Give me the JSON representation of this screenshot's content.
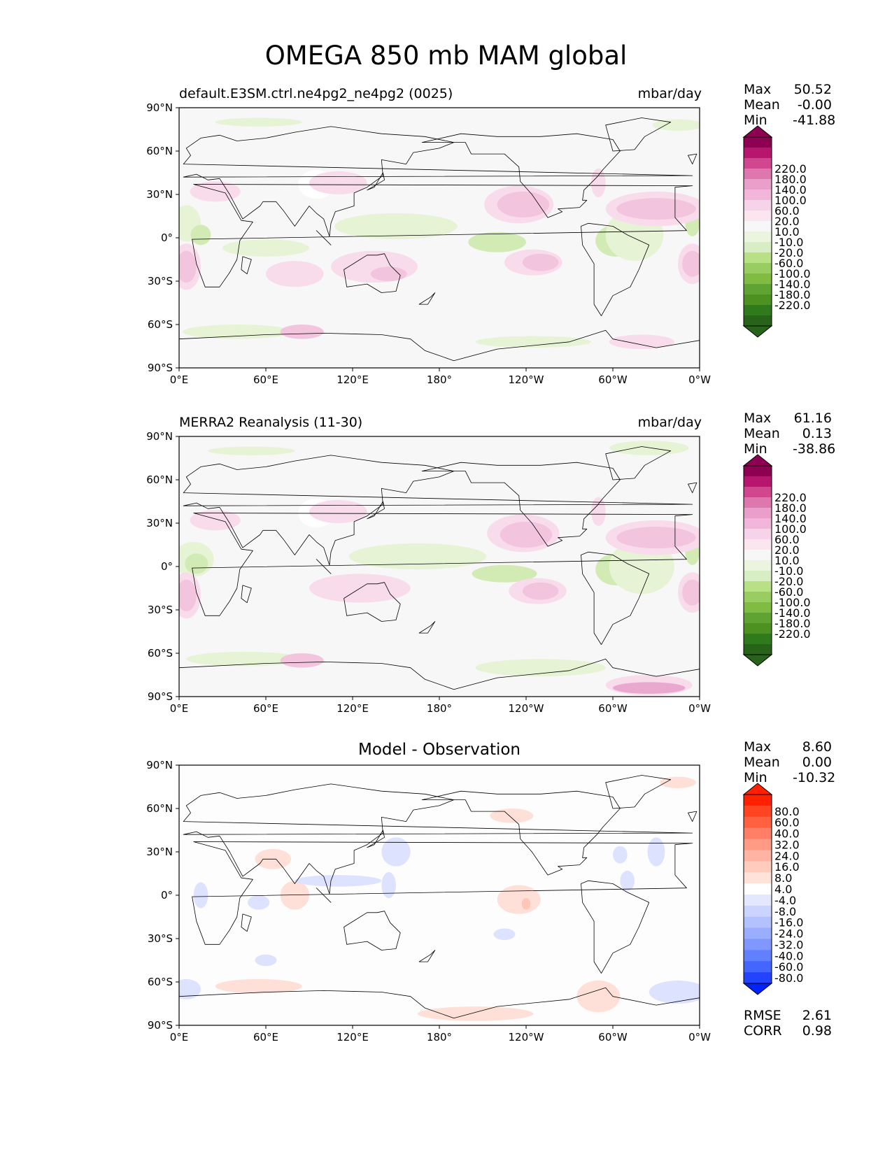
{
  "suptitle": "OMEGA 850 mb MAM global",
  "panels": [
    {
      "id": "test",
      "left_title": "default.E3SM.ctrl.ne4pg2_ne4pg2 (0025)",
      "right_title": "mbar/day",
      "center_title": "",
      "stats": [
        {
          "label": "Max",
          "value": "50.52"
        },
        {
          "label": "Mean",
          "value": "-0.00"
        },
        {
          "label": "Min",
          "value": "-41.88"
        }
      ],
      "colorbar": "omega",
      "blobs": [
        {
          "lon": 95,
          "lat": 37,
          "w": 25,
          "h": 20,
          "level": "missing"
        },
        {
          "lon": 5,
          "lat": 10,
          "w": 20,
          "h": 25,
          "level": "g1"
        },
        {
          "lon": 15,
          "lat": 2,
          "w": 14,
          "h": 14,
          "level": "g2"
        },
        {
          "lon": 150,
          "lat": 8,
          "w": 85,
          "h": 18,
          "level": "g1"
        },
        {
          "lon": 220,
          "lat": -3,
          "w": 40,
          "h": 14,
          "level": "g2"
        },
        {
          "lon": 302,
          "lat": -2,
          "w": 28,
          "h": 22,
          "level": "g2"
        },
        {
          "lon": 315,
          "lat": 2,
          "w": 40,
          "h": 36,
          "level": "g1"
        },
        {
          "lon": 60,
          "lat": -7,
          "w": 60,
          "h": 12,
          "level": "g1"
        },
        {
          "lon": 40,
          "lat": -65,
          "w": 75,
          "h": 10,
          "level": "g1"
        },
        {
          "lon": 245,
          "lat": -72,
          "w": 80,
          "h": 8,
          "level": "g1"
        },
        {
          "lon": 55,
          "lat": 80,
          "w": 60,
          "h": 6,
          "level": "g1"
        },
        {
          "lon": 345,
          "lat": 78,
          "w": 35,
          "h": 8,
          "level": "g1"
        },
        {
          "lon": 355,
          "lat": 10,
          "w": 10,
          "h": 18,
          "level": "g2"
        },
        {
          "lon": 235,
          "lat": 23,
          "w": 48,
          "h": 26,
          "level": "p1"
        },
        {
          "lon": 238,
          "lat": 23,
          "w": 36,
          "h": 18,
          "level": "p2"
        },
        {
          "lon": 330,
          "lat": 20,
          "w": 70,
          "h": 24,
          "level": "p1"
        },
        {
          "lon": 330,
          "lat": 20,
          "w": 55,
          "h": 15,
          "level": "p2"
        },
        {
          "lon": 245,
          "lat": -17,
          "w": 40,
          "h": 18,
          "level": "p1"
        },
        {
          "lon": 250,
          "lat": -17,
          "w": 25,
          "h": 12,
          "level": "p2"
        },
        {
          "lon": 5,
          "lat": -20,
          "w": 20,
          "h": 32,
          "level": "p1"
        },
        {
          "lon": 5,
          "lat": -20,
          "w": 14,
          "h": 22,
          "level": "p2"
        },
        {
          "lon": 355,
          "lat": -18,
          "w": 20,
          "h": 28,
          "level": "p1"
        },
        {
          "lon": 355,
          "lat": -18,
          "w": 14,
          "h": 18,
          "level": "p2"
        },
        {
          "lon": 135,
          "lat": -20,
          "w": 60,
          "h": 22,
          "level": "p1"
        },
        {
          "lon": 145,
          "lat": -25,
          "w": 25,
          "h": 10,
          "level": "p2"
        },
        {
          "lon": 80,
          "lat": -25,
          "w": 40,
          "h": 18,
          "level": "p1"
        },
        {
          "lon": 25,
          "lat": 32,
          "w": 35,
          "h": 14,
          "level": "p1"
        },
        {
          "lon": 110,
          "lat": 38,
          "w": 40,
          "h": 16,
          "level": "p1"
        },
        {
          "lon": 85,
          "lat": -65,
          "w": 30,
          "h": 10,
          "level": "p2"
        },
        {
          "lon": 290,
          "lat": 38,
          "w": 10,
          "h": 20,
          "level": "p1"
        },
        {
          "lon": 320,
          "lat": -72,
          "w": 45,
          "h": 10,
          "level": "p1"
        }
      ]
    },
    {
      "id": "ref",
      "left_title": "MERRA2 Reanalysis (11-30)",
      "right_title": "mbar/day",
      "center_title": "",
      "stats": [
        {
          "label": "Max",
          "value": "61.16"
        },
        {
          "label": "Mean",
          "value": "0.13"
        },
        {
          "label": "Min",
          "value": "-38.86"
        }
      ],
      "colorbar": "omega",
      "blobs": [
        {
          "lon": 95,
          "lat": 37,
          "w": 25,
          "h": 20,
          "level": "missing"
        },
        {
          "lon": 10,
          "lat": 5,
          "w": 28,
          "h": 24,
          "level": "g1"
        },
        {
          "lon": 12,
          "lat": 2,
          "w": 16,
          "h": 14,
          "level": "g2"
        },
        {
          "lon": 165,
          "lat": 7,
          "w": 95,
          "h": 18,
          "level": "g1"
        },
        {
          "lon": 225,
          "lat": -5,
          "w": 45,
          "h": 12,
          "level": "g2"
        },
        {
          "lon": 302,
          "lat": -2,
          "w": 28,
          "h": 22,
          "level": "g2"
        },
        {
          "lon": 320,
          "lat": 0,
          "w": 45,
          "h": 38,
          "level": "g1"
        },
        {
          "lon": 45,
          "lat": -64,
          "w": 80,
          "h": 10,
          "level": "g1"
        },
        {
          "lon": 250,
          "lat": -70,
          "w": 90,
          "h": 12,
          "level": "g1"
        },
        {
          "lon": 325,
          "lat": 82,
          "w": 55,
          "h": 10,
          "level": "g1"
        },
        {
          "lon": 50,
          "lat": 80,
          "w": 60,
          "h": 6,
          "level": "g1"
        },
        {
          "lon": 355,
          "lat": 10,
          "w": 10,
          "h": 18,
          "level": "g2"
        },
        {
          "lon": 238,
          "lat": 23,
          "w": 50,
          "h": 26,
          "level": "p1"
        },
        {
          "lon": 240,
          "lat": 22,
          "w": 36,
          "h": 18,
          "level": "p2"
        },
        {
          "lon": 330,
          "lat": 20,
          "w": 70,
          "h": 24,
          "level": "p1"
        },
        {
          "lon": 330,
          "lat": 20,
          "w": 55,
          "h": 15,
          "level": "p2"
        },
        {
          "lon": 248,
          "lat": -17,
          "w": 40,
          "h": 18,
          "level": "p1"
        },
        {
          "lon": 250,
          "lat": -17,
          "w": 25,
          "h": 12,
          "level": "p2"
        },
        {
          "lon": 5,
          "lat": -20,
          "w": 20,
          "h": 32,
          "level": "p1"
        },
        {
          "lon": 5,
          "lat": -20,
          "w": 14,
          "h": 22,
          "level": "p2"
        },
        {
          "lon": 355,
          "lat": -18,
          "w": 20,
          "h": 28,
          "level": "p1"
        },
        {
          "lon": 355,
          "lat": -18,
          "w": 14,
          "h": 18,
          "level": "p2"
        },
        {
          "lon": 125,
          "lat": -15,
          "w": 70,
          "h": 20,
          "level": "p1"
        },
        {
          "lon": 25,
          "lat": 32,
          "w": 35,
          "h": 14,
          "level": "p1"
        },
        {
          "lon": 110,
          "lat": 38,
          "w": 40,
          "h": 16,
          "level": "p1"
        },
        {
          "lon": 85,
          "lat": -65,
          "w": 30,
          "h": 10,
          "level": "p2"
        },
        {
          "lon": 325,
          "lat": -82,
          "w": 60,
          "h": 14,
          "level": "p1"
        },
        {
          "lon": 325,
          "lat": -84,
          "w": 50,
          "h": 8,
          "level": "p3"
        },
        {
          "lon": 290,
          "lat": 38,
          "w": 10,
          "h": 20,
          "level": "p1"
        }
      ]
    },
    {
      "id": "diff",
      "left_title": "",
      "right_title": "",
      "center_title": "Model - Observation",
      "stats": [
        {
          "label": "Max",
          "value": "8.60"
        },
        {
          "label": "Mean",
          "value": "0.00"
        },
        {
          "label": "Min",
          "value": "-10.32"
        }
      ],
      "bottom_stats": [
        {
          "label": "RMSE",
          "value": "2.61"
        },
        {
          "label": "CORR",
          "value": "0.98"
        }
      ],
      "colorbar": "diff",
      "blobs": [
        {
          "lon": 345,
          "lat": 78,
          "w": 25,
          "h": 8,
          "level": "r1"
        },
        {
          "lon": 230,
          "lat": 55,
          "w": 30,
          "h": 10,
          "level": "r1"
        },
        {
          "lon": 235,
          "lat": -3,
          "w": 30,
          "h": 20,
          "level": "r1"
        },
        {
          "lon": 240,
          "lat": -6,
          "w": 6,
          "h": 8,
          "level": "r2"
        },
        {
          "lon": 80,
          "lat": 0,
          "w": 20,
          "h": 20,
          "level": "r1"
        },
        {
          "lon": 65,
          "lat": 25,
          "w": 25,
          "h": 14,
          "level": "r1"
        },
        {
          "lon": 55,
          "lat": -63,
          "w": 60,
          "h": 10,
          "level": "r1"
        },
        {
          "lon": 290,
          "lat": -70,
          "w": 30,
          "h": 22,
          "level": "r1"
        },
        {
          "lon": 205,
          "lat": -82,
          "w": 80,
          "h": 10,
          "level": "r1"
        },
        {
          "lon": 150,
          "lat": 30,
          "w": 20,
          "h": 20,
          "level": "b1"
        },
        {
          "lon": 145,
          "lat": 7,
          "w": 10,
          "h": 18,
          "level": "b1"
        },
        {
          "lon": 110,
          "lat": 10,
          "w": 60,
          "h": 8,
          "level": "b1"
        },
        {
          "lon": 15,
          "lat": 0,
          "w": 10,
          "h": 18,
          "level": "b1"
        },
        {
          "lon": 330,
          "lat": 30,
          "w": 12,
          "h": 20,
          "level": "b1"
        },
        {
          "lon": 310,
          "lat": 10,
          "w": 10,
          "h": 14,
          "level": "b1"
        },
        {
          "lon": 225,
          "lat": -27,
          "w": 15,
          "h": 8,
          "level": "b1"
        },
        {
          "lon": 305,
          "lat": 28,
          "w": 10,
          "h": 12,
          "level": "b1"
        },
        {
          "lon": 5,
          "lat": -65,
          "w": 20,
          "h": 14,
          "level": "b1"
        },
        {
          "lon": 345,
          "lat": -67,
          "w": 40,
          "h": 16,
          "level": "b1"
        },
        {
          "lon": 55,
          "lat": -5,
          "w": 15,
          "h": 10,
          "level": "b1"
        },
        {
          "lon": 60,
          "lat": -45,
          "w": 15,
          "h": 8,
          "level": "b1"
        }
      ]
    }
  ],
  "x_ticks": [
    "0°E",
    "60°E",
    "120°E",
    "180°",
    "120°W",
    "60°W",
    "0°W"
  ],
  "y_ticks": [
    "90°N",
    "60°N",
    "30°N",
    "0°",
    "30°S",
    "60°S",
    "90°S"
  ],
  "colorbars": {
    "omega": {
      "labels": [
        "220.0",
        "180.0",
        "140.0",
        "100.0",
        "60.0",
        "20.0",
        "10.0",
        "-10.0",
        "-20.0",
        "-60.0",
        "-100.0",
        "-140.0",
        "-180.0",
        "-220.0"
      ],
      "colors": [
        "#8e0152",
        "#b6166e",
        "#d0468f",
        "#de77ae",
        "#ea9fca",
        "#f1b6da",
        "#f6d3e8",
        "#fbe6f0",
        "#f7f7f7",
        "#eaf4df",
        "#d7edc3",
        "#b8e186",
        "#9acd61",
        "#7fbc41",
        "#5fa332",
        "#4d9221",
        "#2f7a1b",
        "#276419"
      ],
      "over": "#8e0152",
      "under": "#276419"
    },
    "diff": {
      "labels": [
        "80.0",
        "60.0",
        "40.0",
        "32.0",
        "24.0",
        "16.0",
        "8.0",
        "4.0",
        "-4.0",
        "-8.0",
        "-16.0",
        "-24.0",
        "-32.0",
        "-40.0",
        "-60.0",
        "-80.0"
      ],
      "colors": [
        "#ff2000",
        "#ff4422",
        "#ff6040",
        "#ff7f66",
        "#ff9a85",
        "#ffb3a3",
        "#ffcbbd",
        "#ffe3da",
        "#ffffff",
        "#e3e8ff",
        "#cbd4ff",
        "#b3c1ff",
        "#9aadff",
        "#7f97ff",
        "#6080ff",
        "#4466ff",
        "#2244ff"
      ],
      "over": "#ff2000",
      "under": "#0022ff"
    }
  },
  "fill_colors": {
    "background": "#f7f7f7",
    "diff_background": "#fdfdfd",
    "missing": "#ffffff",
    "g1": "#e6f3d5",
    "g2": "#d2ebb4",
    "p1": "#f9dcec",
    "p2": "#f3c4de",
    "p3": "#e9a8cd",
    "r1": "#ffe0d8",
    "r2": "#ffc5b6",
    "b1": "#dde3ff"
  }
}
